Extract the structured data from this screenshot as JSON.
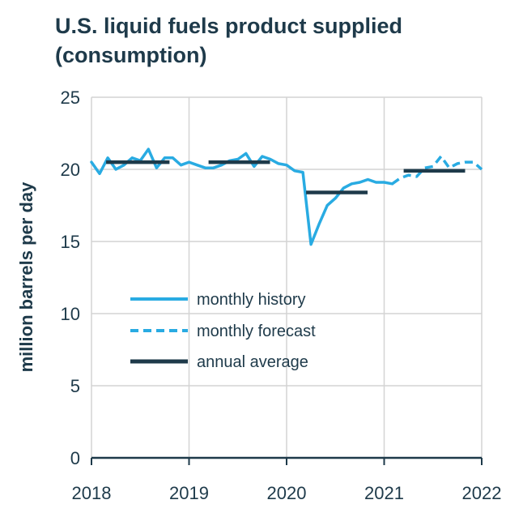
{
  "chart_data": {
    "type": "line",
    "title": "U.S. liquid fuels product supplied (consumption)",
    "ylabel": "million barrels per day",
    "xlabel": "",
    "xlim": [
      2018,
      2022
    ],
    "ylim": [
      0,
      25
    ],
    "x_ticks": [
      "2018",
      "2019",
      "2020",
      "2021",
      "2022"
    ],
    "y_ticks": [
      "0",
      "5",
      "10",
      "15",
      "20",
      "25"
    ],
    "grid": true,
    "legend_position": "center-left",
    "series": [
      {
        "name": "monthly history",
        "style": "solid",
        "color": "#29abe2",
        "x": [
          2018.0,
          2018.083,
          2018.167,
          2018.25,
          2018.333,
          2018.417,
          2018.5,
          2018.583,
          2018.667,
          2018.75,
          2018.833,
          2018.917,
          2019.0,
          2019.083,
          2019.167,
          2019.25,
          2019.333,
          2019.417,
          2019.5,
          2019.583,
          2019.667,
          2019.75,
          2019.833,
          2019.917,
          2020.0,
          2020.083,
          2020.167,
          2020.25,
          2020.333,
          2020.417,
          2020.5,
          2020.583,
          2020.667,
          2020.75,
          2020.833,
          2020.917,
          2021.0,
          2021.083
        ],
        "values": [
          20.5,
          19.7,
          20.8,
          20.0,
          20.3,
          20.8,
          20.6,
          21.4,
          20.1,
          20.8,
          20.8,
          20.3,
          20.5,
          20.3,
          20.1,
          20.1,
          20.3,
          20.6,
          20.7,
          21.1,
          20.2,
          20.9,
          20.7,
          20.4,
          20.3,
          19.9,
          19.8,
          14.8,
          16.2,
          17.5,
          18.0,
          18.7,
          19.0,
          19.1,
          19.3,
          19.1,
          19.1,
          19.0
        ]
      },
      {
        "name": "monthly forecast",
        "style": "dashed",
        "color": "#29abe2",
        "x": [
          2021.083,
          2021.167,
          2021.25,
          2021.333,
          2021.417,
          2021.5,
          2021.583,
          2021.667,
          2021.75,
          2021.833,
          2021.917,
          2022.0
        ],
        "values": [
          19.0,
          19.4,
          19.6,
          19.5,
          20.1,
          20.2,
          20.9,
          20.1,
          20.4,
          20.5,
          20.5,
          20.0
        ]
      },
      {
        "name": "annual average",
        "style": "solid-thick",
        "color": "#1e3a4a",
        "segments": [
          {
            "x": [
              2018.15,
              2018.8
            ],
            "value": 20.5
          },
          {
            "x": [
              2019.2,
              2019.83
            ],
            "value": 20.5
          },
          {
            "x": [
              2020.2,
              2020.83
            ],
            "value": 18.4
          },
          {
            "x": [
              2021.2,
              2021.83
            ],
            "value": 19.9
          }
        ]
      }
    ]
  },
  "legend": {
    "items": [
      {
        "label": "monthly history"
      },
      {
        "label": "monthly forecast"
      },
      {
        "label": "annual average"
      }
    ]
  },
  "colors": {
    "line": "#29abe2",
    "annual": "#1e3a4a",
    "grid": "#d4d4d4",
    "text": "#1e3a4a"
  }
}
